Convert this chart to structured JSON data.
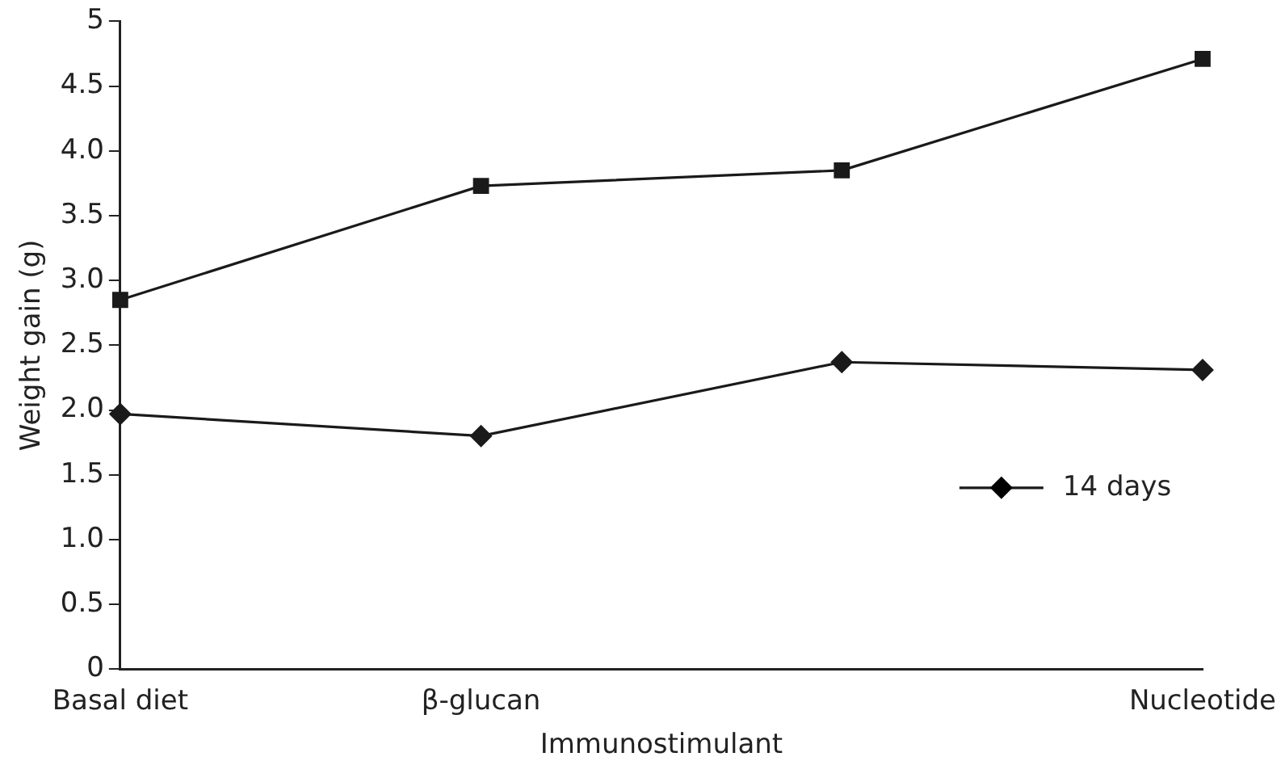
{
  "chart_data": {
    "type": "line",
    "xlabel": "Immunostimulant",
    "ylabel": "Weight gain (g)",
    "categories": [
      "Basal diet",
      "β-glucan",
      null,
      "Nucleotide"
    ],
    "series": [
      {
        "color": "#1a1a1a",
        "marker": "square",
        "values": [
          2.85,
          3.73,
          3.85,
          4.71
        ]
      },
      {
        "name": "14 days",
        "color": "#1a1a1a",
        "marker": "diamond",
        "values": [
          1.97,
          1.8,
          2.37,
          2.31
        ]
      }
    ],
    "ylim": [
      0,
      5
    ],
    "yticks": [
      0,
      {
        "value": 0.5,
        "label": "0.5"
      },
      {
        "value": 1,
        "label": "1.0"
      },
      {
        "value": 1.5,
        "label": "1.5"
      },
      {
        "value": 2,
        "label": "2.0"
      },
      {
        "value": 2.5,
        "label": "2.5"
      },
      {
        "value": 3,
        "label": "3.0"
      },
      {
        "value": 3.5,
        "label": "3.5"
      },
      {
        "value": 4,
        "label": "4.0"
      },
      {
        "value": 4.5,
        "label": "4.5"
      },
      5
    ],
    "grid": false,
    "legend": "right",
    "line_style": "solid"
  }
}
